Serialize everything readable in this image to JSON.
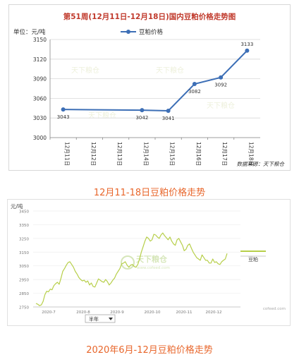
{
  "chart_data": [
    {
      "type": "line",
      "title": "第51周(12月11日-12月18日)国内豆粕价格走势图",
      "unit_label": "单位：元/吨",
      "legend": "豆粕价格",
      "source": "数据来源：天下粮仓",
      "categories": [
        "12月11日",
        "12月12日",
        "12月13日",
        "12月14日",
        "12月15日",
        "12月16日",
        "12月17日",
        "12月18日"
      ],
      "series": [
        {
          "name": "豆粕价格",
          "values": [
            3043,
            null,
            null,
            3042,
            3041,
            3082,
            3092,
            3133
          ]
        }
      ],
      "point_labels": [
        "3043",
        "",
        "",
        "3042",
        "3041",
        "3082",
        "3092",
        "3133"
      ],
      "y_ticks": [
        3000,
        3030,
        3060,
        3090,
        3120,
        3150
      ],
      "ylim": [
        3000,
        3150
      ],
      "grid": true,
      "legend_position": "top",
      "watermark": "天下粮仓",
      "line_color": "#3d6fb6"
    },
    {
      "type": "line",
      "unit_label": "元/吨",
      "legend": "豆粕",
      "x_ticks": [
        "2020-7",
        "2020-8",
        "2020-9",
        "2020-10",
        "2020-11",
        "2020-12"
      ],
      "y_ticks": [
        2750,
        2850,
        2950,
        3050,
        3150,
        3250,
        3350,
        3450
      ],
      "ylim": [
        2750,
        3450
      ],
      "range_selector": "半年",
      "logo_text": "天下粮仓",
      "logo_url_text": "www.cofeed.com",
      "corner_text": "cofeed.com",
      "line_color": "#b7cf4a",
      "series": [
        {
          "name": "豆粕",
          "values": [
            2775,
            2770,
            2760,
            2765,
            2790,
            2840,
            2865,
            2860,
            2880,
            2875,
            2905,
            2920,
            2930,
            2915,
            2960,
            3010,
            3030,
            3055,
            3075,
            3080,
            3060,
            3040,
            3010,
            2990,
            2965,
            2950,
            2940,
            2945,
            2930,
            2940,
            2910,
            2925,
            2900,
            2895,
            2925,
            2955,
            2945,
            2935,
            2930,
            2950,
            2935,
            2910,
            2925,
            2945,
            2960,
            2990,
            3010,
            3030,
            3065,
            3070,
            3080,
            3055,
            3040,
            3055,
            3060,
            3045,
            3040,
            3060,
            3100,
            3150,
            3190,
            3230,
            3260,
            3250,
            3230,
            3240,
            3280,
            3275,
            3260,
            3250,
            3275,
            3290,
            3270,
            3255,
            3240,
            3260,
            3230,
            3210,
            3200,
            3240,
            3250,
            3225,
            3200,
            3160,
            3170,
            3200,
            3210,
            3180,
            3150,
            3130,
            3110,
            3100,
            3090,
            3130,
            3110,
            3090,
            3090,
            3070,
            3070,
            3100,
            3075,
            3080,
            3065,
            3060,
            3080,
            3090,
            3100,
            3140
          ]
        }
      ]
    }
  ],
  "captions": {
    "chart1": "12月11-18日豆粕价格走势",
    "chart2": "2020年6月-12月豆粕价格走势"
  }
}
